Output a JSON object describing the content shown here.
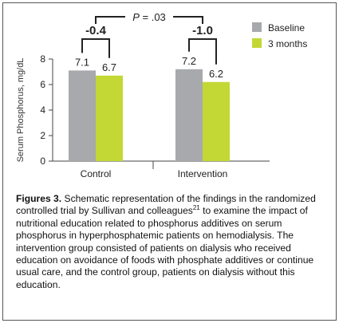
{
  "chart_data": {
    "type": "bar",
    "categories": [
      "Control",
      "Intervention"
    ],
    "series": [
      {
        "name": "Baseline",
        "values": [
          7.1,
          7.2
        ],
        "color": "#a7a9ac"
      },
      {
        "name": "3 months",
        "values": [
          6.7,
          6.2
        ],
        "color": "#c3d835"
      }
    ],
    "data_labels": [
      [
        "7.1",
        "6.7"
      ],
      [
        "7.2",
        "6.2"
      ]
    ],
    "ylabel": "Serum Phosphorus, mg/dL",
    "ylim": [
      0,
      8
    ],
    "yticks": [
      0,
      2,
      4,
      6,
      8
    ],
    "grid": false,
    "legend_position": "top-right",
    "annotations": {
      "p_value_italic": "P",
      "p_value_rest": " = .03",
      "control_change": "-0.4",
      "intervention_change": "-1.0"
    }
  },
  "caption": {
    "label": "Figures 3.",
    "text_before_ref": " Schematic representation of the findings in the randomized controlled trial by Sullivan and colleagues",
    "ref": "21",
    "text_after_ref": " to examine the impact of nutritional education related to phosphorus additives on serum phosphorus in hyperphosphatemic patients on hemodialysis. The intervention group consisted of patients on dialysis who received education on avoidance of foods with phosphate additives or continue usual care, and the control group, patients on dialysis without this education."
  }
}
